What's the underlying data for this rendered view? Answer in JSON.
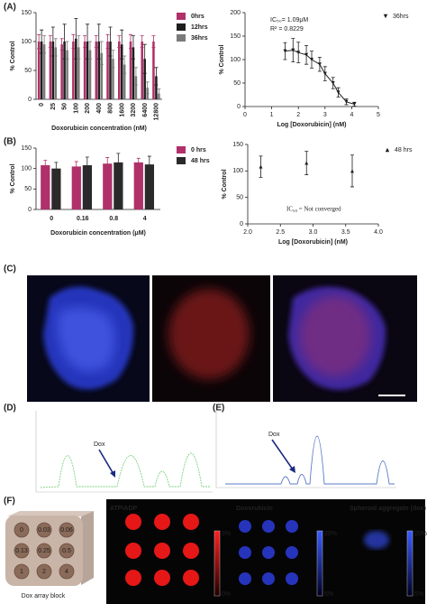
{
  "panel_labels": [
    "(A)",
    "(B)",
    "(C)",
    "(D)",
    "(E)",
    "(F)"
  ],
  "chart_data": [
    {
      "type": "bar",
      "x_label": "Doxorubicin concentration (nM)",
      "y_label": "% Control",
      "categories": [
        "0",
        "25",
        "50",
        "100",
        "200",
        "400",
        "800",
        "1600",
        "3200",
        "6400",
        "12800"
      ],
      "series": [
        {
          "name": "0hrs",
          "color": "#b0306a",
          "values": [
            100,
            100,
            95,
            100,
            100,
            100,
            100,
            100,
            100,
            100,
            100
          ],
          "errors": [
            12,
            10,
            10,
            12,
            10,
            10,
            12,
            10,
            12,
            10,
            10
          ]
        },
        {
          "name": "12hrs",
          "color": "#1e1e1e",
          "values": [
            100,
            100,
            100,
            105,
            100,
            100,
            100,
            95,
            90,
            70,
            40
          ],
          "errors": [
            20,
            25,
            30,
            35,
            30,
            30,
            25,
            25,
            20,
            25,
            15
          ]
        },
        {
          "name": "36hrs",
          "color": "#7a7a7a",
          "values": [
            95,
            90,
            85,
            90,
            85,
            80,
            70,
            60,
            40,
            20,
            10
          ],
          "errors": [
            15,
            15,
            15,
            20,
            15,
            20,
            15,
            15,
            15,
            10,
            8
          ]
        }
      ],
      "ylim": [
        0,
        150
      ],
      "yticks": [
        0,
        50,
        100,
        150
      ]
    },
    {
      "type": "line",
      "x_label": "Log [Doxorubicin] (nM)",
      "y_label": "% Control",
      "annotations": [
        "IC₅₀= 1.09μM",
        "R² = 0.8229"
      ],
      "x": [
        1.5,
        1.8,
        2.0,
        2.3,
        2.5,
        2.8,
        3.0,
        3.3,
        3.5,
        3.8,
        4.1
      ],
      "series": [
        {
          "name": "36hrs",
          "color": "#1e1e1e",
          "values": [
            118,
            120,
            115,
            110,
            100,
            90,
            70,
            50,
            30,
            10,
            5
          ],
          "errors": [
            18,
            25,
            22,
            20,
            18,
            15,
            15,
            12,
            10,
            6,
            4
          ]
        }
      ],
      "xlim": [
        0,
        5
      ],
      "xticks": [
        0,
        1,
        2,
        3,
        4,
        5
      ],
      "ylim": [
        0,
        200
      ],
      "yticks": [
        0,
        50,
        100,
        150,
        200
      ]
    },
    {
      "type": "bar",
      "x_label": "Doxorubicin concentration (μM)",
      "y_label": "% Control",
      "categories": [
        "0",
        "0.16",
        "0.8",
        "4"
      ],
      "series": [
        {
          "name": "0 hrs",
          "color": "#b0306a",
          "values": [
            108,
            105,
            112,
            115
          ],
          "errors": [
            12,
            12,
            15,
            10
          ]
        },
        {
          "name": "48 hrs",
          "color": "#2a2a2a",
          "values": [
            100,
            108,
            115,
            110
          ],
          "errors": [
            15,
            20,
            22,
            20
          ]
        }
      ],
      "ylim": [
        0,
        150
      ],
      "yticks": [
        0,
        50,
        100,
        150
      ]
    },
    {
      "type": "scatter",
      "x_label": "Log [Doxorubicin] (nM)",
      "y_label": "% Control",
      "annotations": [
        "IC₅₀ = Not converged"
      ],
      "x": [
        2.2,
        2.9,
        3.6
      ],
      "series": [
        {
          "name": "48 hrs",
          "color": "#1e1e1e",
          "values": [
            108,
            115,
            100
          ],
          "errors": [
            20,
            22,
            30
          ]
        }
      ],
      "xlim": [
        2,
        4
      ],
      "xticks": [
        {
          "value": 2,
          "label": "2.0"
        },
        {
          "value": 2.5,
          "label": "2.5"
        },
        {
          "value": 3,
          "label": "3.0"
        },
        {
          "value": 3.5,
          "label": "3.5"
        },
        {
          "value": 4,
          "label": "4.0"
        }
      ],
      "ylim": [
        0,
        150
      ],
      "yticks": [
        0,
        50,
        100,
        150
      ]
    }
  ],
  "chromatograms": [
    {
      "annotation": "Dox"
    },
    {
      "annotation": "Dox"
    }
  ],
  "panel_f": {
    "block_label": "Dox array block",
    "wells": [
      "0",
      "0.03",
      "0.06",
      "0.13",
      "0.25",
      "0.5",
      "1",
      "2",
      "4"
    ],
    "images": [
      {
        "title": "ATP/ADP",
        "scale_max": "3%",
        "scale_min": "0%"
      },
      {
        "title": "Doxorubicin",
        "scale_max": "20%",
        "scale_min": "5%"
      },
      {
        "title": "Spheroid aggregate (dox)",
        "scale_max": "20%",
        "scale_min": "5%"
      }
    ]
  }
}
